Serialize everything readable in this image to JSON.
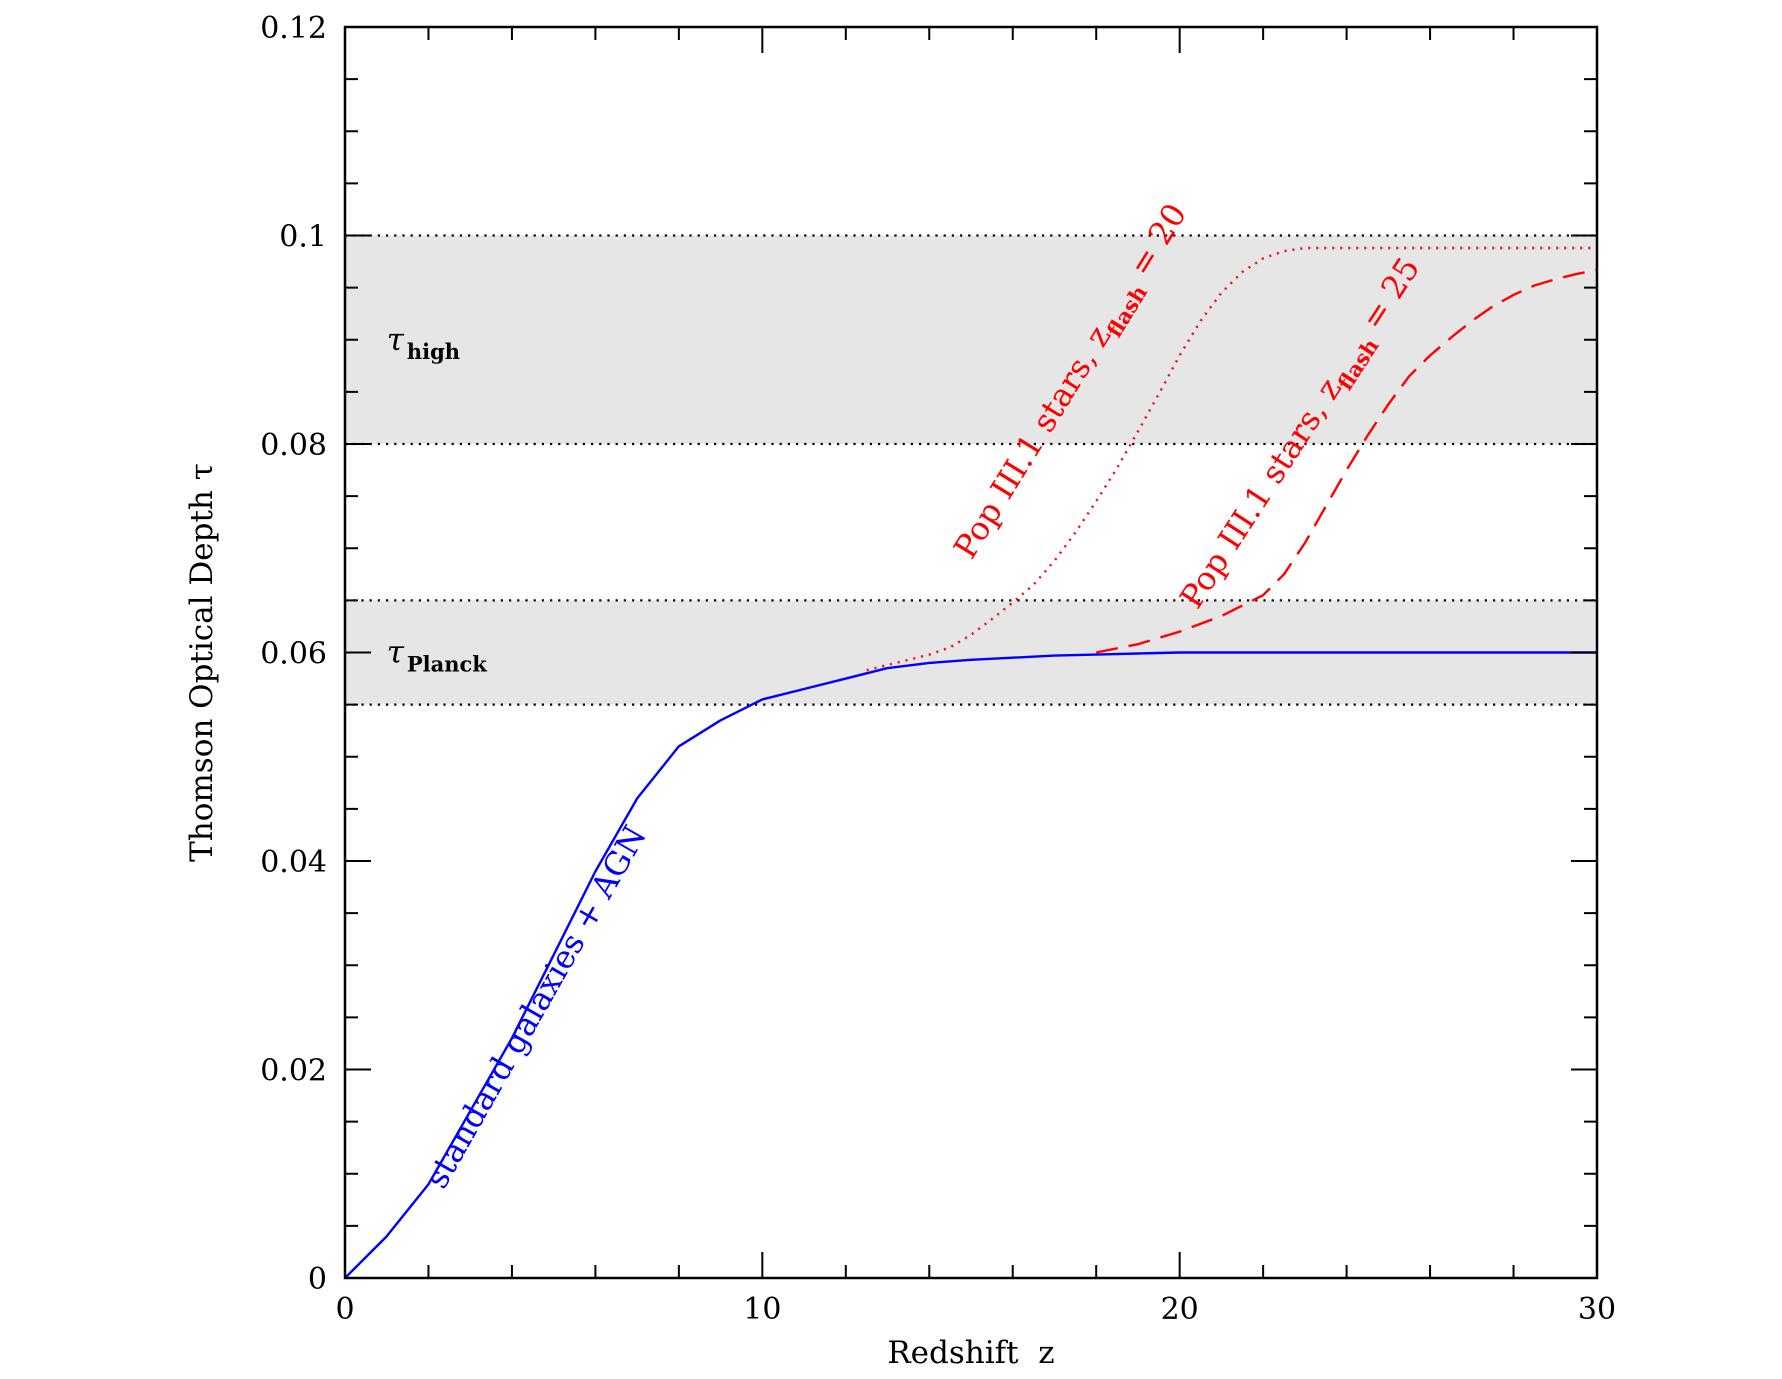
{
  "chart_data": {
    "type": "line",
    "title": "",
    "xlabel": "Redshift  z",
    "ylabel": "Thomson Optical Depth τ",
    "xlim": [
      0,
      30
    ],
    "ylim": [
      0,
      0.12
    ],
    "x_ticks": [
      {
        "value": 0,
        "label": "0"
      },
      {
        "value": 10,
        "label": "10"
      },
      {
        "value": 20,
        "label": "20"
      },
      {
        "value": 30,
        "label": "30"
      }
    ],
    "y_ticks": [
      {
        "value": 0,
        "label": "0"
      },
      {
        "value": 0.02,
        "label": "0.02"
      },
      {
        "value": 0.04,
        "label": "0.04"
      },
      {
        "value": 0.06,
        "label": "0.06"
      },
      {
        "value": 0.08,
        "label": "0.08"
      },
      {
        "value": 0.1,
        "label": "0.1"
      },
      {
        "value": 0.12,
        "label": "0.12"
      }
    ],
    "x_minor_step": 2,
    "y_minor_step": 0.005,
    "bands": [
      {
        "label": "τ",
        "subscript": "Planck",
        "ymin": 0.055,
        "ymax": 0.065,
        "label_x": 1,
        "label_y": 0.06,
        "fill": "#e6e6e6"
      },
      {
        "label": "τ",
        "subscript": "high",
        "ymin": 0.08,
        "ymax": 0.1,
        "label_x": 1,
        "label_y": 0.09,
        "fill": "#e6e6e6"
      }
    ],
    "series": [
      {
        "label_text": "standard galaxies + AGN",
        "label_subscript": "",
        "label_suffix": "",
        "color": "#0000ff",
        "style": "solid",
        "label_anchor": [
          4.8,
          0.0255
        ],
        "label_angle_data": [
          [
            1.5,
            0.0115
          ],
          [
            7.2,
            0.0515
          ]
        ],
        "points": [
          [
            0,
            0
          ],
          [
            1,
            0.004
          ],
          [
            2,
            0.009
          ],
          [
            3,
            0.016
          ],
          [
            4,
            0.023
          ],
          [
            5,
            0.031
          ],
          [
            6,
            0.039
          ],
          [
            7,
            0.046
          ],
          [
            8,
            0.051
          ],
          [
            9,
            0.0535
          ],
          [
            10,
            0.0555
          ],
          [
            11,
            0.0565
          ],
          [
            12,
            0.0575
          ],
          [
            13,
            0.0585
          ],
          [
            14,
            0.059
          ],
          [
            15,
            0.0593
          ],
          [
            16,
            0.0595
          ],
          [
            17,
            0.0597
          ],
          [
            18,
            0.0598
          ],
          [
            19,
            0.0599
          ],
          [
            20,
            0.06
          ],
          [
            22,
            0.06
          ],
          [
            24,
            0.06
          ],
          [
            26,
            0.06
          ],
          [
            28,
            0.06
          ],
          [
            30,
            0.06
          ]
        ]
      },
      {
        "label_text": "Pop III.1 stars, z",
        "label_subscript": "flash",
        "label_suffix": " = 20",
        "color": "#ff0000",
        "style": "dotted",
        "label_anchor": [
          17.6,
          0.0855
        ],
        "label_angle_data": [
          [
            14.5,
            0.0615
          ],
          [
            21.0,
            0.1035
          ]
        ],
        "points": [
          [
            12.5,
            0.0583
          ],
          [
            13,
            0.0588
          ],
          [
            13.5,
            0.0593
          ],
          [
            14,
            0.0598
          ],
          [
            14.5,
            0.0605
          ],
          [
            15,
            0.0617
          ],
          [
            15.5,
            0.0632
          ],
          [
            16,
            0.0648
          ],
          [
            16.5,
            0.0665
          ],
          [
            17,
            0.0688
          ],
          [
            17.5,
            0.0715
          ],
          [
            18,
            0.0745
          ],
          [
            18.5,
            0.0777
          ],
          [
            19,
            0.0812
          ],
          [
            19.5,
            0.0848
          ],
          [
            20,
            0.0885
          ],
          [
            20.5,
            0.0918
          ],
          [
            21,
            0.0945
          ],
          [
            21.5,
            0.0965
          ],
          [
            22,
            0.0978
          ],
          [
            22.5,
            0.0985
          ],
          [
            23,
            0.0988
          ],
          [
            25,
            0.0988
          ],
          [
            27,
            0.0988
          ],
          [
            29,
            0.0988
          ],
          [
            30,
            0.0988
          ]
        ]
      },
      {
        "label_text": "Pop III.1 stars, z",
        "label_subscript": "flash",
        "label_suffix": " = 25",
        "color": "#ff0000",
        "style": "dashed",
        "label_anchor": [
          23.1,
          0.0805
        ],
        "label_angle_data": [
          [
            20.0,
            0.0615
          ],
          [
            26.0,
            0.0985
          ]
        ],
        "points": [
          [
            18,
            0.06
          ],
          [
            19,
            0.0608
          ],
          [
            20,
            0.062
          ],
          [
            21,
            0.0635
          ],
          [
            22,
            0.0655
          ],
          [
            22.5,
            0.0675
          ],
          [
            23,
            0.0705
          ],
          [
            23.5,
            0.074
          ],
          [
            24,
            0.0775
          ],
          [
            24.5,
            0.0808
          ],
          [
            25,
            0.0838
          ],
          [
            25.5,
            0.0865
          ],
          [
            26,
            0.0885
          ],
          [
            26.5,
            0.0902
          ],
          [
            27,
            0.0918
          ],
          [
            27.5,
            0.0932
          ],
          [
            28,
            0.0943
          ],
          [
            28.5,
            0.0952
          ],
          [
            29,
            0.0958
          ],
          [
            29.5,
            0.0963
          ],
          [
            30,
            0.0967
          ]
        ]
      }
    ]
  }
}
